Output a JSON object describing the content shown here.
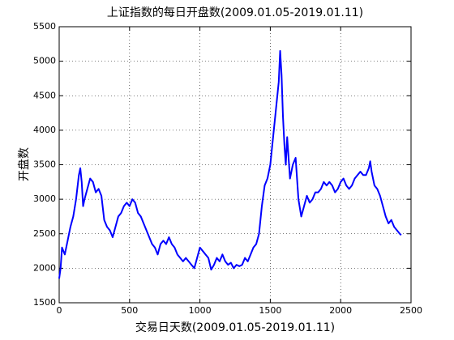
{
  "chart_data": {
    "type": "line",
    "title": "上证指数的每日开盘数(2009.01.05-2019.01.11)",
    "x_label": "交易日天数(2009.01.05-2019.01.11)",
    "y_label": "开盘数",
    "x": [
      0,
      10,
      20,
      40,
      60,
      80,
      100,
      120,
      140,
      150,
      160,
      170,
      180,
      200,
      220,
      240,
      260,
      280,
      300,
      320,
      340,
      360,
      380,
      400,
      420,
      440,
      460,
      480,
      500,
      520,
      540,
      560,
      580,
      600,
      620,
      640,
      660,
      680,
      700,
      720,
      740,
      760,
      780,
      800,
      820,
      840,
      860,
      880,
      900,
      920,
      940,
      960,
      980,
      1000,
      1020,
      1040,
      1060,
      1080,
      1100,
      1120,
      1140,
      1160,
      1180,
      1200,
      1220,
      1240,
      1260,
      1280,
      1300,
      1320,
      1340,
      1360,
      1380,
      1400,
      1420,
      1440,
      1460,
      1480,
      1500,
      1520,
      1540,
      1560,
      1570,
      1580,
      1590,
      1600,
      1610,
      1620,
      1640,
      1660,
      1680,
      1700,
      1720,
      1740,
      1760,
      1780,
      1800,
      1820,
      1840,
      1860,
      1880,
      1900,
      1920,
      1940,
      1960,
      1980,
      2000,
      2020,
      2040,
      2060,
      2080,
      2100,
      2120,
      2140,
      2160,
      2180,
      2200,
      2210,
      2220,
      2240,
      2260,
      2280,
      2300,
      2320,
      2340,
      2360,
      2380,
      2400,
      2420,
      2430
    ],
    "series": [
      {
        "color": "#0000ff",
        "values": [
          1850,
          2000,
          2300,
          2200,
          2400,
          2600,
          2750,
          3000,
          3350,
          3450,
          3250,
          2900,
          3000,
          3150,
          3300,
          3250,
          3100,
          3150,
          3050,
          2700,
          2600,
          2550,
          2450,
          2600,
          2750,
          2800,
          2900,
          2950,
          2900,
          3000,
          2950,
          2800,
          2750,
          2650,
          2550,
          2450,
          2350,
          2300,
          2200,
          2350,
          2400,
          2350,
          2450,
          2350,
          2300,
          2200,
          2150,
          2100,
          2150,
          2100,
          2050,
          2000,
          2150,
          2300,
          2250,
          2200,
          2150,
          1980,
          2050,
          2150,
          2100,
          2200,
          2100,
          2050,
          2080,
          2000,
          2050,
          2030,
          2050,
          2150,
          2100,
          2200,
          2300,
          2350,
          2500,
          2900,
          3200,
          3300,
          3500,
          3900,
          4300,
          4700,
          5150,
          4800,
          4200,
          3800,
          3500,
          3900,
          3300,
          3500,
          3600,
          3000,
          2750,
          2900,
          3050,
          2950,
          3000,
          3100,
          3100,
          3150,
          3250,
          3200,
          3250,
          3200,
          3100,
          3150,
          3250,
          3300,
          3200,
          3150,
          3200,
          3300,
          3350,
          3400,
          3350,
          3350,
          3450,
          3550,
          3400,
          3200,
          3150,
          3050,
          2900,
          2750,
          2650,
          2700,
          2600,
          2550,
          2500,
          2480
        ]
      }
    ],
    "xlim": [
      0,
      2500
    ],
    "xticks": [
      0,
      500,
      1000,
      1500,
      2000,
      2500
    ],
    "ylim": [
      1500,
      5500
    ],
    "yticks": [
      1500,
      2000,
      2500,
      3000,
      3500,
      4000,
      4500,
      5000,
      5500
    ],
    "grid": true
  }
}
